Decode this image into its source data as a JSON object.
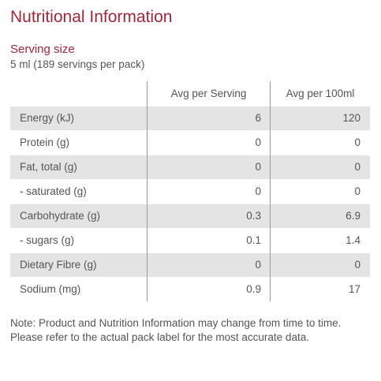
{
  "title": "Nutritional Information",
  "serving": {
    "label": "Serving size",
    "value": "5 ml (189 servings per pack)"
  },
  "table": {
    "headers": {
      "name": "",
      "per_serving": "Avg per Serving",
      "per_100": "Avg per 100ml"
    },
    "rows": [
      {
        "name": "Energy (kJ)",
        "per_serving": "6",
        "per_100": "120",
        "shaded": true
      },
      {
        "name": "Protein (g)",
        "per_serving": "0",
        "per_100": "0",
        "shaded": false
      },
      {
        "name": "Fat, total (g)",
        "per_serving": "0",
        "per_100": "0",
        "shaded": true
      },
      {
        "name": "- saturated (g)",
        "per_serving": "0",
        "per_100": "0",
        "shaded": false
      },
      {
        "name": "Carbohydrate (g)",
        "per_serving": "0.3",
        "per_100": "6.9",
        "shaded": true
      },
      {
        "name": "- sugars (g)",
        "per_serving": "0.1",
        "per_100": "1.4",
        "shaded": false
      },
      {
        "name": "Dietary Fibre (g)",
        "per_serving": "0",
        "per_100": "0",
        "shaded": true
      },
      {
        "name": "Sodium (mg)",
        "per_serving": "0.9",
        "per_100": "17",
        "shaded": false
      }
    ]
  },
  "note": "Note: Product and Nutrition Information may change from time to time. Please refer to the actual pack label for the most accurate data.",
  "colors": {
    "accent": "#a3273a",
    "text": "#555555",
    "shade": "#e4e4e4",
    "divider": "#999999"
  }
}
